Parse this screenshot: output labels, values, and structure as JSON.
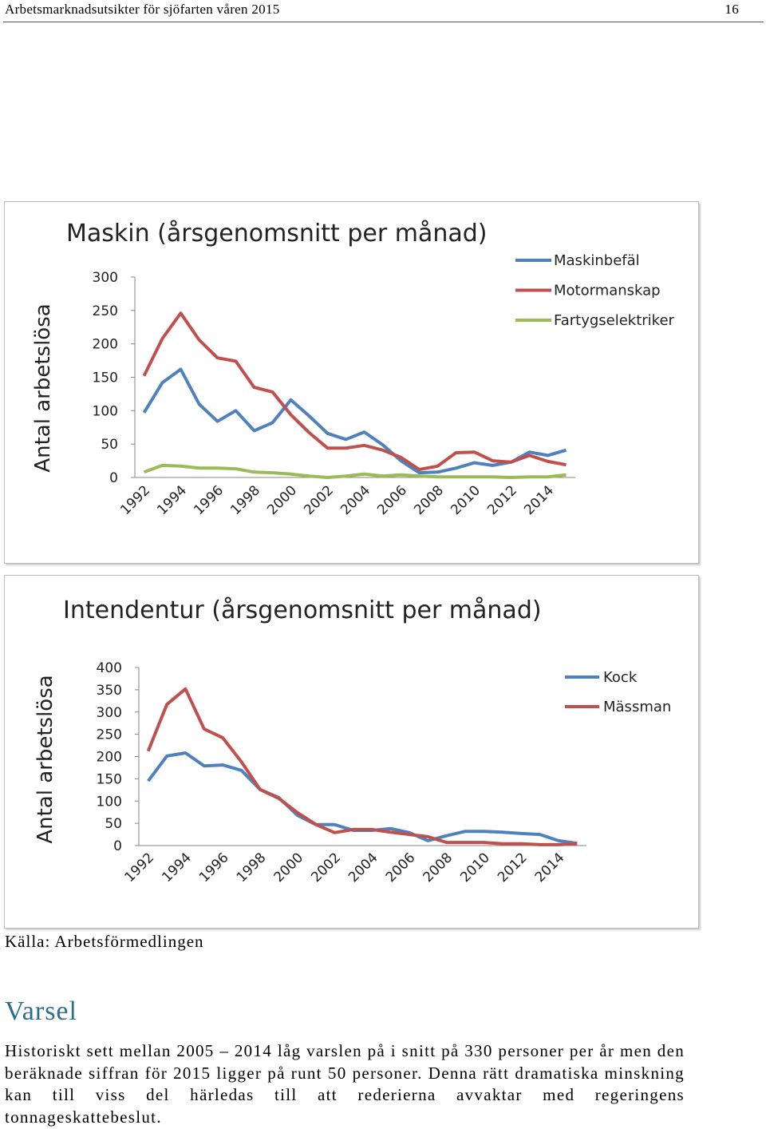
{
  "header": {
    "title": "Arbetsmarknadsutsikter för sjöfarten våren 2015",
    "page": "16"
  },
  "chart_data": [
    {
      "type": "line",
      "title": "Maskin (årsgenomsnitt per månad)",
      "y_label": "Antal arbetslösa",
      "categories": [
        "1992",
        null,
        "1994",
        null,
        "1996",
        null,
        "1998",
        null,
        "2000",
        null,
        "2002",
        null,
        "2004",
        null,
        "2006",
        null,
        "2008",
        null,
        "2010",
        null,
        "2012",
        null,
        "2014",
        null
      ],
      "ylim": [
        0,
        300
      ],
      "yticks": [
        0,
        50,
        100,
        150,
        200,
        250,
        300
      ],
      "grid": false,
      "legend": "right",
      "series": [
        {
          "name": "Maskinbefäl",
          "color": "#4f81bd",
          "values": [
            97,
            142,
            162,
            110,
            84,
            100,
            70,
            82,
            116,
            92,
            66,
            57,
            68,
            49,
            25,
            7,
            8,
            14,
            22,
            18,
            23,
            38,
            33,
            41
          ]
        },
        {
          "name": "Motormanskap",
          "color": "#c0504d",
          "values": [
            152,
            208,
            246,
            206,
            179,
            174,
            135,
            128,
            94,
            67,
            44,
            44,
            48,
            41,
            30,
            12,
            17,
            37,
            38,
            25,
            23,
            33,
            24,
            19
          ]
        },
        {
          "name": "Fartygselektriker",
          "color": "#9bbb59",
          "values": [
            8,
            18,
            17,
            14,
            14,
            13,
            8,
            7,
            5,
            2,
            0,
            2,
            5,
            2,
            4,
            2,
            1,
            1,
            1,
            1,
            0,
            1,
            1,
            4
          ]
        }
      ]
    },
    {
      "type": "line",
      "title": "Intendentur (årsgenomsnitt per månad)",
      "y_label": "Antal arbetslösa",
      "categories": [
        "1992",
        null,
        "1994",
        null,
        "1996",
        null,
        "1998",
        null,
        "2000",
        null,
        "2002",
        null,
        "2004",
        null,
        "2006",
        null,
        "2008",
        null,
        "2010",
        null,
        "2012",
        null,
        "2014",
        null
      ],
      "ylim": [
        0,
        400
      ],
      "yticks": [
        0,
        50,
        100,
        150,
        200,
        250,
        300,
        350,
        400
      ],
      "grid": false,
      "legend": "right",
      "series": [
        {
          "name": "Kock",
          "color": "#4f81bd",
          "values": [
            145,
            201,
            208,
            179,
            181,
            169,
            126,
            108,
            68,
            47,
            47,
            34,
            34,
            38,
            29,
            11,
            22,
            32,
            32,
            30,
            27,
            25,
            11,
            5
          ]
        },
        {
          "name": "Mässman",
          "color": "#c0504d",
          "values": [
            212,
            317,
            352,
            262,
            242,
            188,
            126,
            106,
            74,
            47,
            29,
            36,
            36,
            30,
            25,
            20,
            7,
            7,
            7,
            4,
            4,
            2,
            2,
            4
          ]
        }
      ]
    }
  ],
  "source": "Källa: Arbetsförmedlingen",
  "section": {
    "heading": "Varsel",
    "text": "Historiskt sett mellan 2005 – 2014 låg varslen på i snitt på 330 personer per år men den beräknade siffran för 2015 ligger på runt 50 personer. Denna rätt dramatiska minskning kan till viss del härledas till att rederierna avvaktar med regeringens tonnageskattebeslut."
  }
}
